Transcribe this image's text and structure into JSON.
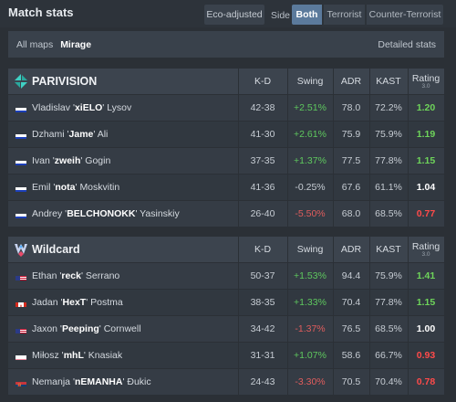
{
  "header": {
    "title": "Match stats",
    "eco_label": "Eco-adjusted",
    "side_label": "Side",
    "side_options": [
      "Both",
      "Terrorist",
      "Counter-Terrorist"
    ],
    "side_selected": "Both"
  },
  "maps": {
    "all_label": "All maps",
    "current": "Mirage",
    "detailed_label": "Detailed stats"
  },
  "columns": {
    "kd": "K-D",
    "swing": "Swing",
    "adr": "ADR",
    "kast": "KAST",
    "rating": "Rating",
    "rating_sub": "3.0"
  },
  "teams": [
    {
      "name": "PARIVISION",
      "logo": "parivision-logo-icon",
      "players": [
        {
          "first": "Vladislav '",
          "nick": "xiELO",
          "last": "' Lysov",
          "flag": "ru",
          "kd": "42-38",
          "swing": "+2.51%",
          "adr": "78.0",
          "kast": "72.2%",
          "rating": "1.20"
        },
        {
          "first": "Dzhami '",
          "nick": "Jame",
          "last": "' Ali",
          "flag": "ru",
          "kd": "41-30",
          "swing": "+2.61%",
          "adr": "75.9",
          "kast": "75.9%",
          "rating": "1.19"
        },
        {
          "first": "Ivan '",
          "nick": "zweih",
          "last": "' Gogin",
          "flag": "ru",
          "kd": "37-35",
          "swing": "+1.37%",
          "adr": "77.5",
          "kast": "77.8%",
          "rating": "1.15"
        },
        {
          "first": "Emil '",
          "nick": "nota",
          "last": "' Moskvitin",
          "flag": "ru",
          "kd": "41-36",
          "swing": "-0.25%",
          "adr": "67.6",
          "kast": "61.1%",
          "rating": "1.04"
        },
        {
          "first": "Andrey '",
          "nick": "BELCHONOKK",
          "last": "' Yasinskiy",
          "flag": "ru",
          "kd": "26-40",
          "swing": "-5.50%",
          "adr": "68.0",
          "kast": "68.5%",
          "rating": "0.77"
        }
      ]
    },
    {
      "name": "Wildcard",
      "logo": "wildcard-logo-icon",
      "players": [
        {
          "first": "Ethan '",
          "nick": "reck",
          "last": "' Serrano",
          "flag": "us",
          "kd": "50-37",
          "swing": "+1.53%",
          "adr": "94.4",
          "kast": "75.9%",
          "rating": "1.41"
        },
        {
          "first": "Jadan '",
          "nick": "HexT",
          "last": "' Postma",
          "flag": "ca",
          "kd": "38-35",
          "swing": "+1.33%",
          "adr": "70.4",
          "kast": "77.8%",
          "rating": "1.15"
        },
        {
          "first": "Jaxon '",
          "nick": "Peeping",
          "last": "' Cornwell",
          "flag": "us",
          "kd": "34-42",
          "swing": "-1.37%",
          "adr": "76.5",
          "kast": "68.5%",
          "rating": "1.00"
        },
        {
          "first": "Miłosz '",
          "nick": "mhL",
          "last": "' Knasiak",
          "flag": "pl",
          "kd": "31-31",
          "swing": "+1.07%",
          "adr": "58.6",
          "kast": "66.7%",
          "rating": "0.93"
        },
        {
          "first": "Nemanja '",
          "nick": "nEMANHA",
          "last": "' Đukic",
          "flag": "rs",
          "kd": "24-43",
          "swing": "-3.30%",
          "adr": "70.5",
          "kast": "70.4%",
          "rating": "0.78"
        }
      ]
    }
  ],
  "colors": {
    "positive": "#5ec85e",
    "negative": "#e05d5d",
    "rating_good": "#6ed45a",
    "rating_bad": "#ff4a4a",
    "accent": "#5b7a9c"
  }
}
